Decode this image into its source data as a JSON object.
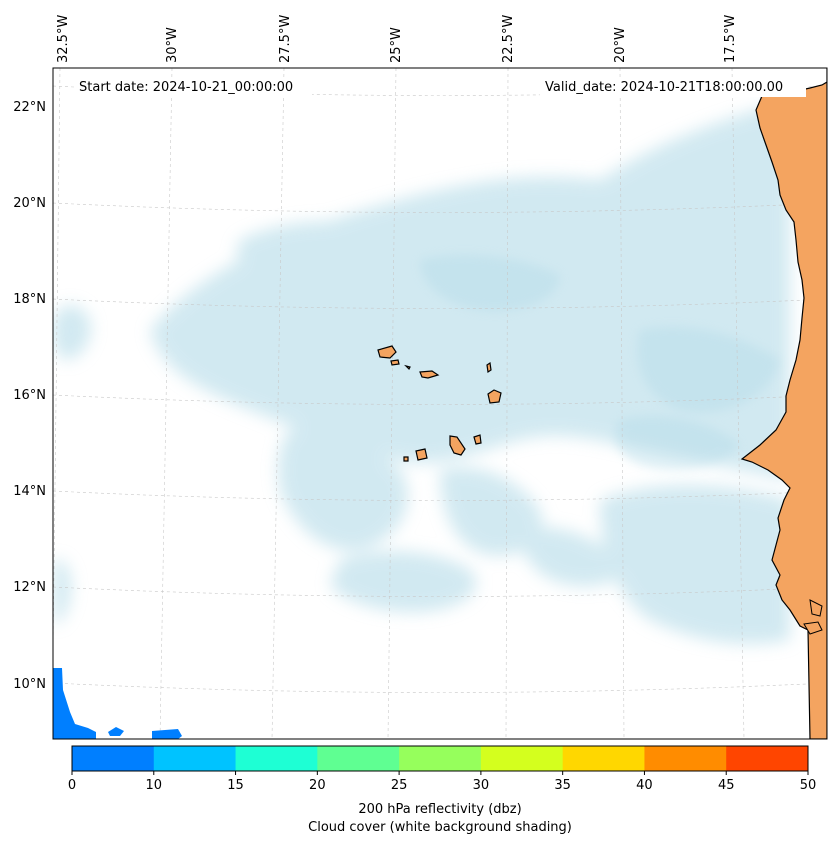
{
  "map": {
    "start_label": "Start date: 2024-10-21_00:00:00",
    "valid_label": "Valid_date: 2024-10-21T18:00:00.00",
    "lon_labels": [
      "32.5°W",
      "30°W",
      "27.5°W",
      "25°W",
      "22.5°W",
      "20°W",
      "17.5°W"
    ],
    "lat_labels": [
      "22°N",
      "20°N",
      "18°N",
      "16°N",
      "14°N",
      "12°N",
      "10°N"
    ],
    "colors": {
      "cloud": "#add8e6",
      "land": "#f4a460",
      "coast": "#000000",
      "grid": "#c8c8c8"
    }
  },
  "colorbar": {
    "ticks": [
      "0",
      "10",
      "15",
      "20",
      "25",
      "30",
      "35",
      "40",
      "45",
      "50"
    ],
    "colors": [
      "#007fff",
      "#00c3ff",
      "#1effd4",
      "#5fff92",
      "#96ff5c",
      "#d4ff1e",
      "#ffd700",
      "#ff8c00",
      "#ff4500"
    ],
    "label_line1": "200 hPa reflectivity (dbz)",
    "label_line2": "Cloud cover (white background shading)"
  }
}
